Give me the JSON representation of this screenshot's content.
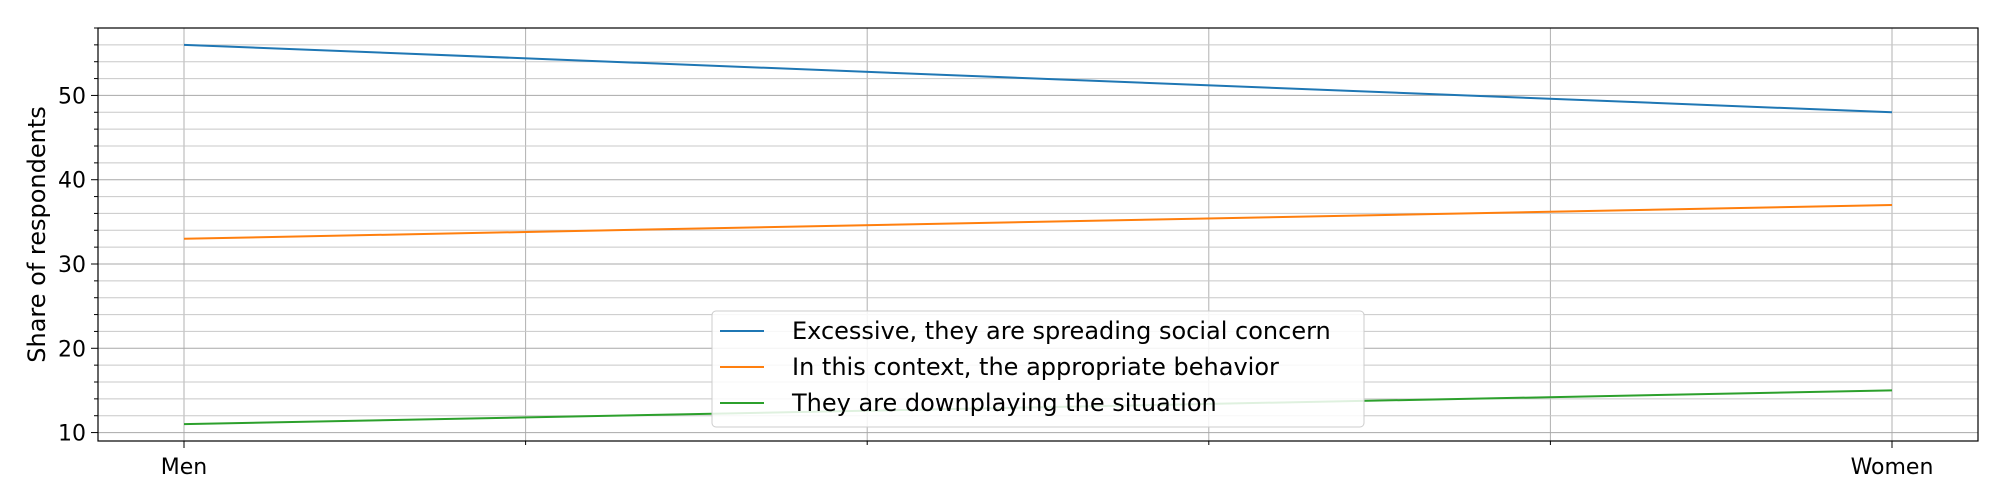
{
  "chart_data": {
    "type": "line",
    "x": [
      "Men",
      "Women"
    ],
    "series": [
      {
        "name": "Excessive, they are spreading social concern",
        "values": [
          56,
          48
        ],
        "color": "#1f77b4"
      },
      {
        "name": "In this context, the appropriate behavior",
        "values": [
          33,
          37
        ],
        "color": "#ff7f0e"
      },
      {
        "name": "They are downplaying the situation",
        "values": [
          11,
          15
        ],
        "color": "#2ca02c"
      }
    ],
    "ylabel": "Share of respondents",
    "xlabel": "",
    "ylim": [
      9,
      58
    ],
    "yticks": [
      "10",
      "20",
      "30",
      "40",
      "50"
    ],
    "grid": true,
    "legend": "bottom-center"
  }
}
